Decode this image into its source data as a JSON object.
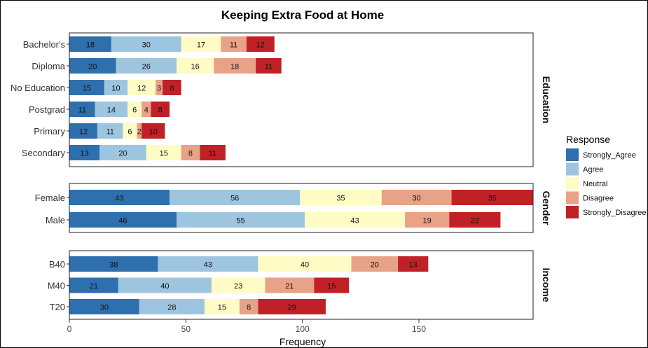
{
  "chart_data": {
    "type": "bar",
    "orientation": "horizontal",
    "stacked": true,
    "title": "Keeping Extra Food at Home",
    "xlabel": "Frequency",
    "ylabel": "",
    "xlim": [
      0,
      199
    ],
    "x_ticks": [
      0,
      50,
      100,
      150
    ],
    "grid": false,
    "legend": {
      "title": "Response",
      "position": "right",
      "entries": [
        "Strongly_Agree",
        "Agree",
        "Neutral",
        "Disagree",
        "Strongly_Disagree"
      ]
    },
    "colors": {
      "Strongly_Agree": "#2E6FAD",
      "Agree": "#9EC5DF",
      "Neutral": "#FFFBC5",
      "Disagree": "#E8A287",
      "Strongly_Disagree": "#C02127"
    },
    "panels": [
      {
        "name": "Education",
        "categories": [
          "Bachelor's",
          "Diploma",
          "No Education",
          "Postgrad",
          "Primary",
          "Secondary"
        ],
        "series": [
          {
            "name": "Strongly_Agree",
            "values": [
              18,
              20,
              15,
              11,
              12,
              13
            ]
          },
          {
            "name": "Agree",
            "values": [
              30,
              26,
              10,
              14,
              11,
              20
            ]
          },
          {
            "name": "Neutral",
            "values": [
              17,
              16,
              12,
              6,
              6,
              15
            ]
          },
          {
            "name": "Disagree",
            "values": [
              11,
              18,
              3,
              4,
              2,
              8
            ]
          },
          {
            "name": "Strongly_Disagree",
            "values": [
              12,
              11,
              8,
              8,
              10,
              11
            ]
          }
        ]
      },
      {
        "name": "Gender",
        "categories": [
          "Female",
          "Male"
        ],
        "series": [
          {
            "name": "Strongly_Agree",
            "values": [
              43,
              46
            ]
          },
          {
            "name": "Agree",
            "values": [
              56,
              55
            ]
          },
          {
            "name": "Neutral",
            "values": [
              35,
              43
            ]
          },
          {
            "name": "Disagree",
            "values": [
              30,
              19
            ]
          },
          {
            "name": "Strongly_Disagree",
            "values": [
              35,
              22
            ]
          }
        ]
      },
      {
        "name": "Income",
        "categories": [
          "B40",
          "M40",
          "T20"
        ],
        "series": [
          {
            "name": "Strongly_Agree",
            "values": [
              38,
              21,
              30
            ]
          },
          {
            "name": "Agree",
            "values": [
              43,
              40,
              28
            ]
          },
          {
            "name": "Neutral",
            "values": [
              40,
              23,
              15
            ]
          },
          {
            "name": "Disagree",
            "values": [
              20,
              21,
              8
            ]
          },
          {
            "name": "Strongly_Disagree",
            "values": [
              13,
              15,
              29
            ]
          }
        ]
      }
    ]
  }
}
